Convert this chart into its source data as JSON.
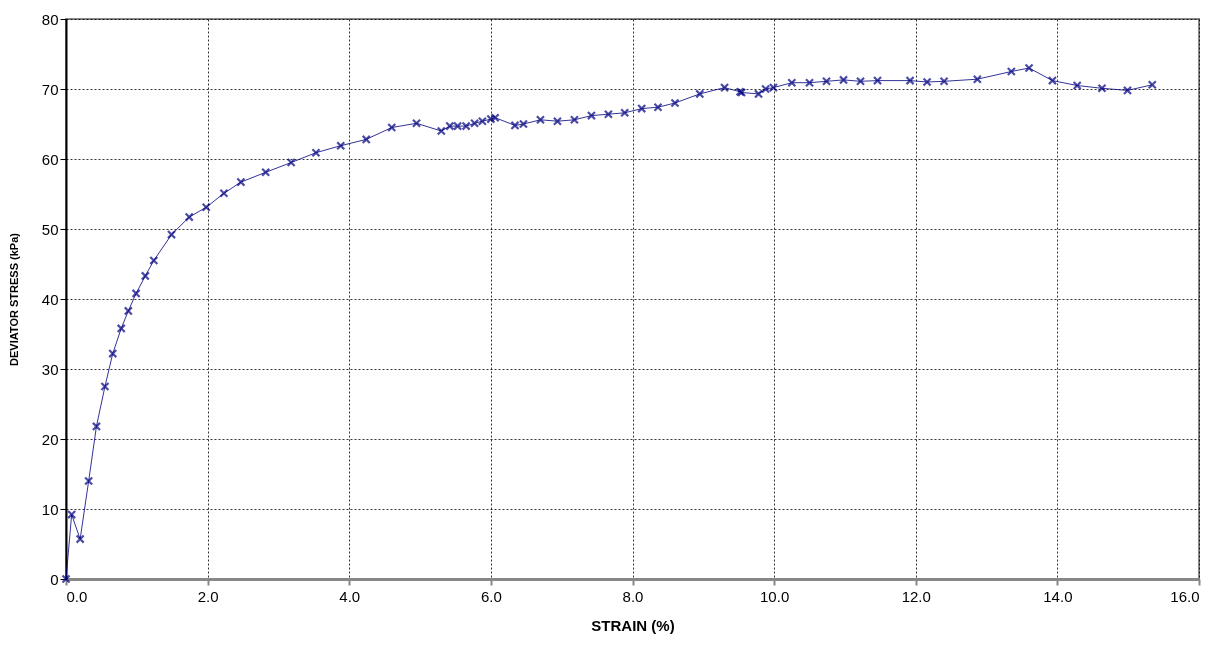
{
  "chart_data": {
    "type": "line",
    "xlabel": "STRAIN (%)",
    "ylabel": "DEVIATOR STRESS (kPa)",
    "x": [
      0,
      0.08,
      0.2,
      0.32,
      0.43,
      0.55,
      0.66,
      0.78,
      0.88,
      0.99,
      1.12,
      1.24,
      1.49,
      1.74,
      1.98,
      2.23,
      2.47,
      2.82,
      3.18,
      3.53,
      3.88,
      4.24,
      4.6,
      4.95,
      5.3,
      5.42,
      5.53,
      5.65,
      5.77,
      5.88,
      6.0,
      6.06,
      6.34,
      6.46,
      6.7,
      6.94,
      7.18,
      7.42,
      7.66,
      7.89,
      8.13,
      8.36,
      8.6,
      8.95,
      9.3,
      9.52,
      9.54,
      9.78,
      9.88,
      9.99,
      10.25,
      10.5,
      10.74,
      10.98,
      11.22,
      11.46,
      11.92,
      12.16,
      12.4,
      12.87,
      13.35,
      13.6,
      13.93,
      14.28,
      14.63,
      14.99,
      15.34
    ],
    "series": [
      {
        "color": "#000080",
        "values": [
          0,
          9.2,
          5.7,
          14,
          21.8,
          27.5,
          32.2,
          35.8,
          38.3,
          40.8,
          43.3,
          45.5,
          49.2,
          51.7,
          53.1,
          55.1,
          56.7,
          58.1,
          59.5,
          60.9,
          61.9,
          62.8,
          64.5,
          65.1,
          64,
          64.7,
          64.7,
          64.7,
          65.1,
          65.4,
          65.7,
          65.9,
          64.8,
          65,
          65.6,
          65.4,
          65.6,
          66.2,
          66.4,
          66.6,
          67.2,
          67.4,
          68,
          69.3,
          70.2,
          69.6,
          69.5,
          69.3,
          70,
          70.2,
          70.9,
          70.9,
          71.1,
          71.3,
          71.1,
          71.2,
          71.2,
          71,
          71.1,
          71.4,
          72.5,
          73,
          71.2,
          70.5,
          70.1,
          69.8,
          70.6
        ]
      }
    ],
    "xlim": [
      0,
      16
    ],
    "xticks": [
      {
        "value": 0,
        "label": "0.0"
      },
      {
        "value": 2,
        "label": "2.0"
      },
      {
        "value": 4,
        "label": "4.0"
      },
      {
        "value": 6,
        "label": "6.0"
      },
      {
        "value": 8,
        "label": "8.0"
      },
      {
        "value": 10,
        "label": "10.0"
      },
      {
        "value": 12,
        "label": "12.0"
      },
      {
        "value": 14,
        "label": "14.0"
      },
      {
        "value": 16,
        "label": "16.0"
      }
    ],
    "ylim": [
      0,
      80
    ],
    "yticks": [
      0,
      10,
      20,
      30,
      40,
      50,
      60,
      70,
      80
    ],
    "grid": true,
    "legend": false,
    "marker": "cross",
    "line_style": "solid"
  }
}
